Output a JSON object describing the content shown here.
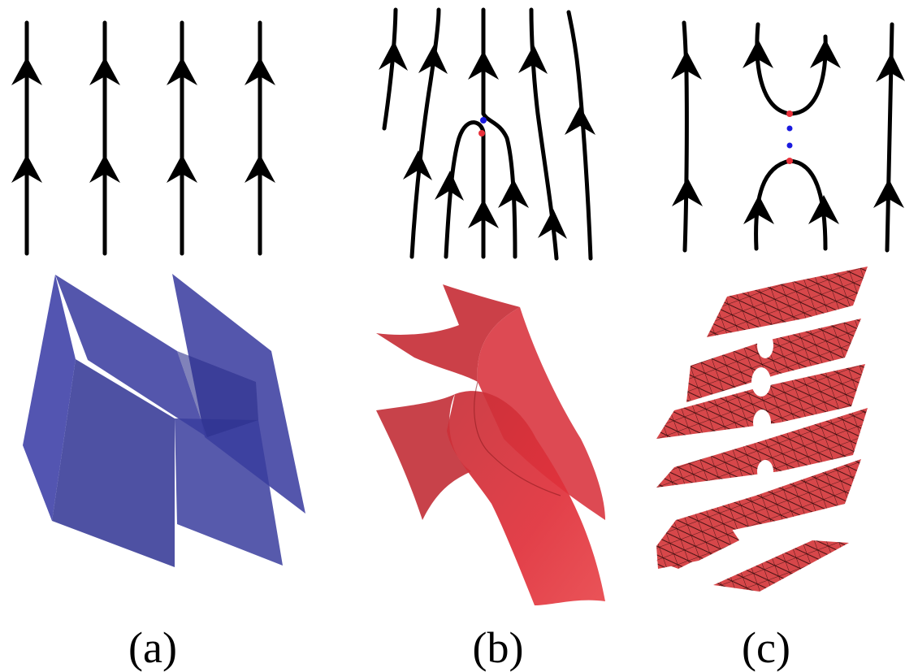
{
  "panels": [
    {
      "id": "a",
      "label": "(a)"
    },
    {
      "id": "b",
      "label": "(b)"
    },
    {
      "id": "c",
      "label": "(c)"
    }
  ],
  "colors": {
    "flow_line": "#000000",
    "sheet_blue": "#3c3fa0",
    "sheet_red": "#e0303a",
    "mesh_red": "#d7474a",
    "point_red": "#e8303a",
    "point_blue": "#1a1adf"
  }
}
